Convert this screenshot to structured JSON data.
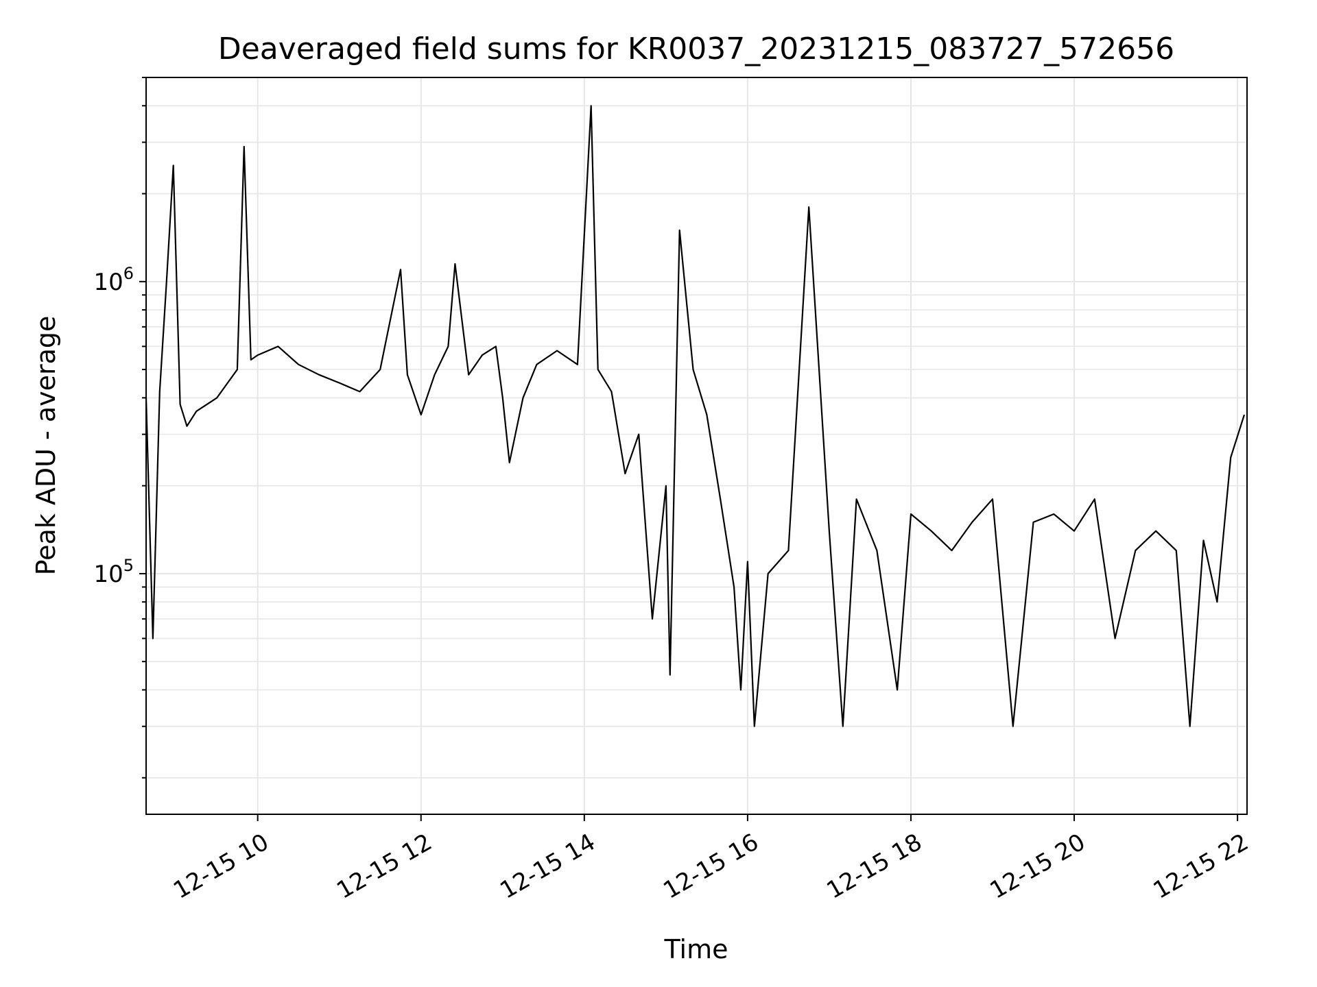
{
  "chart_data": {
    "type": "line",
    "title": "Deaveraged field sums for KR0037_20231215_083727_572656",
    "xlabel": "Time",
    "ylabel": "Peak ADU - average",
    "x_axis": {
      "kind": "datetime",
      "range": [
        "12-15 08:38",
        "12-15 22:07"
      ],
      "ticks": [
        "12-15 10",
        "12-15 12",
        "12-15 14",
        "12-15 16",
        "12-15 18",
        "12-15 20",
        "12-15 22"
      ]
    },
    "y_axis": {
      "scale": "log",
      "range": [
        15000,
        5000000
      ],
      "ticks": [
        {
          "base": "10",
          "exp": "5",
          "value": 100000
        },
        {
          "base": "10",
          "exp": "6",
          "value": 1000000
        }
      ]
    },
    "grid": true,
    "colors": {
      "line": "#000000",
      "grid": "#e6e6e6"
    },
    "series": [
      {
        "x": [
          "12-15 08:38",
          "12-15 08:43",
          "12-15 08:48",
          "12-15 08:53",
          "12-15 08:58",
          "12-15 09:03",
          "12-15 09:08",
          "12-15 09:15",
          "12-15 09:30",
          "12-15 09:45",
          "12-15 09:50",
          "12-15 09:55",
          "12-15 10:00",
          "12-15 10:15",
          "12-15 10:30",
          "12-15 10:45",
          "12-15 11:00",
          "12-15 11:15",
          "12-15 11:30",
          "12-15 11:45",
          "12-15 11:50",
          "12-15 12:00",
          "12-15 12:10",
          "12-15 12:20",
          "12-15 12:25",
          "12-15 12:35",
          "12-15 12:45",
          "12-15 12:55",
          "12-15 13:00",
          "12-15 13:05",
          "12-15 13:15",
          "12-15 13:25",
          "12-15 13:40",
          "12-15 13:55",
          "12-15 14:05",
          "12-15 14:10",
          "12-15 14:20",
          "12-15 14:30",
          "12-15 14:40",
          "12-15 14:50",
          "12-15 15:00",
          "12-15 15:03",
          "12-15 15:10",
          "12-15 15:20",
          "12-15 15:30",
          "12-15 15:40",
          "12-15 15:50",
          "12-15 15:55",
          "12-15 16:00",
          "12-15 16:05",
          "12-15 16:15",
          "12-15 16:30",
          "12-15 16:45",
          "12-15 17:00",
          "12-15 17:10",
          "12-15 17:20",
          "12-15 17:35",
          "12-15 17:50",
          "12-15 18:00",
          "12-15 18:15",
          "12-15 18:30",
          "12-15 18:45",
          "12-15 19:00",
          "12-15 19:15",
          "12-15 19:30",
          "12-15 19:45",
          "12-15 20:00",
          "12-15 20:15",
          "12-15 20:30",
          "12-15 20:45",
          "12-15 21:00",
          "12-15 21:15",
          "12-15 21:25",
          "12-15 21:35",
          "12-15 21:45",
          "12-15 21:55",
          "12-15 22:05"
        ],
        "y": [
          400000,
          60000,
          420000,
          1000000,
          2500000,
          380000,
          320000,
          360000,
          400000,
          500000,
          2900000,
          540000,
          560000,
          600000,
          520000,
          480000,
          450000,
          420000,
          500000,
          1100000,
          480000,
          350000,
          480000,
          600000,
          1150000,
          480000,
          560000,
          600000,
          400000,
          240000,
          400000,
          520000,
          580000,
          520000,
          4000000,
          500000,
          420000,
          220000,
          300000,
          70000,
          200000,
          45000,
          1500000,
          500000,
          350000,
          180000,
          90000,
          40000,
          110000,
          30000,
          100000,
          120000,
          1800000,
          140000,
          30000,
          180000,
          120000,
          40000,
          160000,
          140000,
          120000,
          150000,
          180000,
          30000,
          150000,
          160000,
          140000,
          180000,
          60000,
          120000,
          140000,
          120000,
          30000,
          130000,
          80000,
          250000,
          350000
        ]
      }
    ]
  }
}
